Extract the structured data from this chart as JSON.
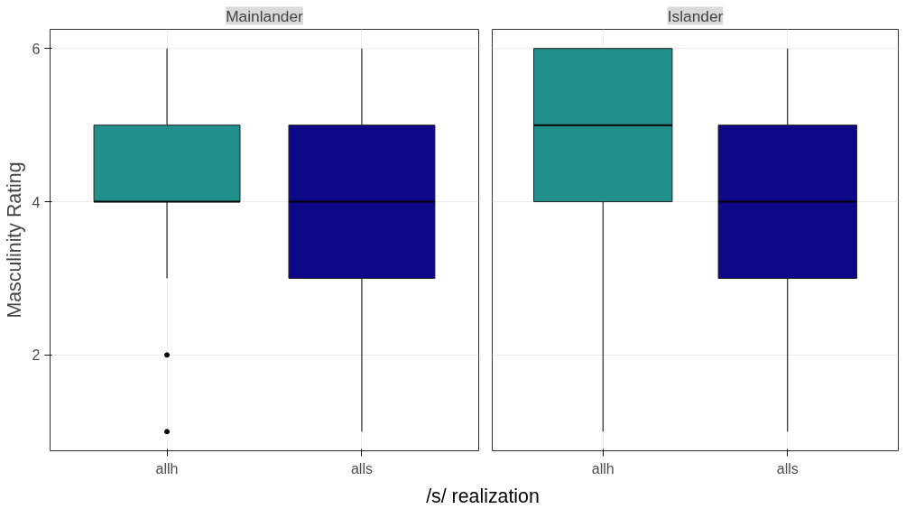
{
  "chart_data": [
    {
      "type": "box",
      "title": "Mainlander",
      "ylabel": "Masculinity Rating",
      "xlabel": "/s/ realization",
      "categories": [
        "allh",
        "alls"
      ],
      "colors": [
        "#21908c",
        "#0d0887"
      ],
      "boxes": [
        {
          "low": 3,
          "q1": 4,
          "median": 4,
          "q3": 5,
          "high": 6,
          "outliers": [
            2,
            1
          ]
        },
        {
          "low": 1,
          "q1": 3,
          "median": 4,
          "q3": 5,
          "high": 6
        }
      ],
      "ylim": [
        0.75,
        6.25
      ],
      "yticks": [
        2,
        4,
        6
      ],
      "grid": true
    },
    {
      "type": "box",
      "title": "Islander",
      "categories": [
        "allh",
        "alls"
      ],
      "colors": [
        "#21908c",
        "#0d0887"
      ],
      "boxes": [
        {
          "low": 1,
          "q1": 4,
          "median": 5,
          "q3": 6,
          "high": 6
        },
        {
          "low": 1,
          "q1": 3,
          "median": 4,
          "q3": 5,
          "high": 6
        }
      ],
      "ylim": [
        0.75,
        6.25
      ],
      "yticks": [
        2,
        4,
        6
      ],
      "grid": true,
      "tick_labels": "x"
    }
  ]
}
